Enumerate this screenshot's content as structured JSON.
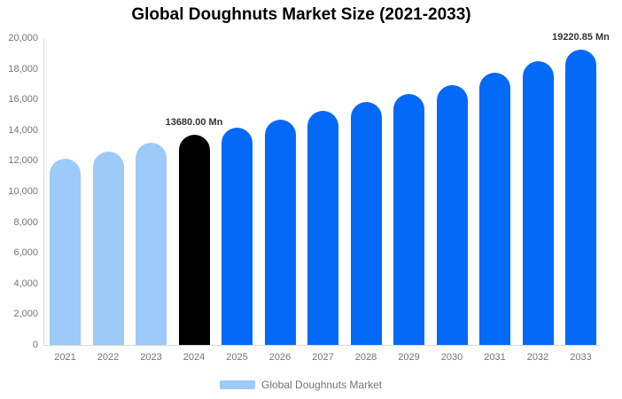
{
  "title": "Global Doughnuts Market Size (2021-2033)",
  "legend": {
    "label": "Global Doughnuts Market",
    "swatch_color": "#9DCAF8"
  },
  "colors": {
    "historical_bar": "#9DCAF8",
    "base_year_bar": "#000000",
    "forecast_bar": "#0569F8",
    "axis_line": "#D9D9D9",
    "tick_text": "#757575",
    "annotation_text": "#333333"
  },
  "y_axis": {
    "min": 0,
    "max": 20000,
    "tick_step": 2000,
    "tick_labels": [
      "0",
      "2,000",
      "4,000",
      "6,000",
      "8,000",
      "10,000",
      "12,000",
      "14,000",
      "16,000",
      "18,000",
      "20,000"
    ]
  },
  "chart_data": {
    "type": "bar",
    "title": "Global Doughnuts Market Size (2021-2033)",
    "xlabel": "",
    "ylabel": "",
    "unit": "Mn",
    "ylim": [
      0,
      20000
    ],
    "grid": false,
    "legend_position": "bottom",
    "categories": [
      "2021",
      "2022",
      "2023",
      "2024",
      "2025",
      "2026",
      "2027",
      "2028",
      "2029",
      "2030",
      "2031",
      "2032",
      "2033"
    ],
    "values": [
      12120,
      12620,
      13180,
      13680,
      14150,
      14680,
      15260,
      15840,
      16360,
      16940,
      17760,
      18480,
      19220.85
    ],
    "bar_colors": [
      "#9DCAF8",
      "#9DCAF8",
      "#9DCAF8",
      "#000000",
      "#0569F8",
      "#0569F8",
      "#0569F8",
      "#0569F8",
      "#0569F8",
      "#0569F8",
      "#0569F8",
      "#0569F8",
      "#0569F8"
    ],
    "annotations": [
      {
        "category": "2024",
        "text": "13680.00 Mn"
      },
      {
        "category": "2033",
        "text": "19220.85 Mn"
      }
    ]
  }
}
